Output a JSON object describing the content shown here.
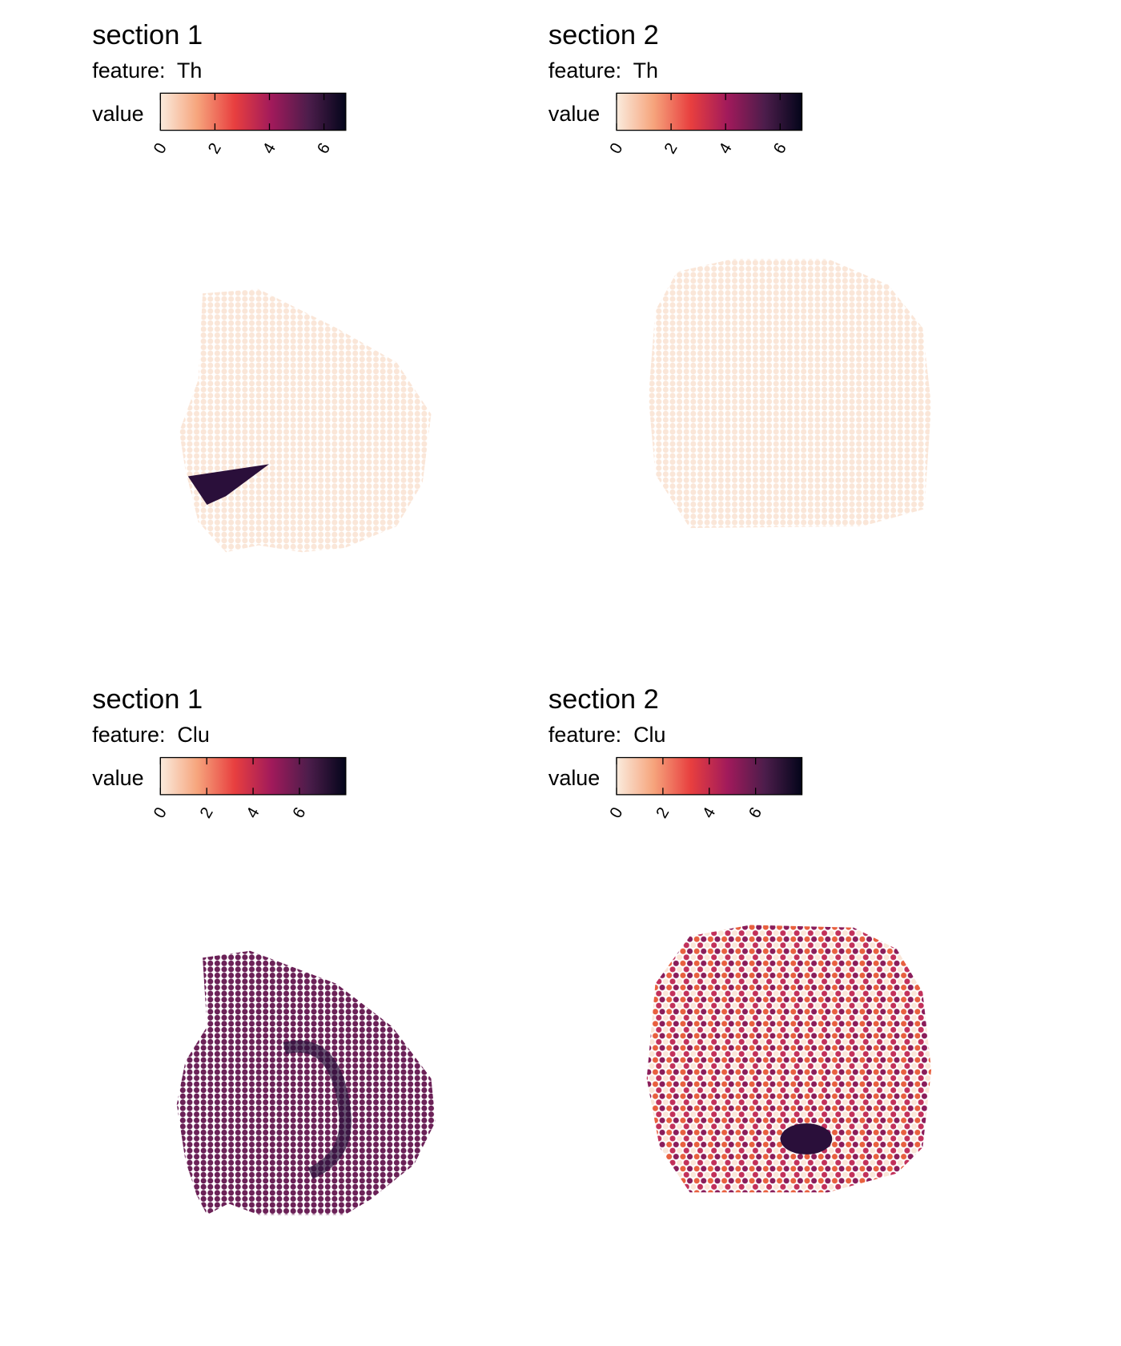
{
  "panels": [
    {
      "title": "section 1",
      "feature_label": "feature:  Th",
      "legend_title": "value",
      "colorbar": {
        "lim": [
          0,
          6.8
        ],
        "ticks": [
          0,
          2,
          4,
          6
        ],
        "colors": [
          "#faebdd",
          "#f6a47c",
          "#e83f3f",
          "#a11a5b",
          "#4c1d4b",
          "#03051a"
        ]
      }
    },
    {
      "title": "section 2",
      "feature_label": "feature:  Th",
      "legend_title": "value",
      "colorbar": {
        "lim": [
          0,
          6.8
        ],
        "ticks": [
          0,
          2,
          4,
          6
        ],
        "colors": [
          "#faebdd",
          "#f6a47c",
          "#e83f3f",
          "#a11a5b",
          "#4c1d4b",
          "#03051a"
        ]
      }
    },
    {
      "title": "section 1",
      "feature_label": "feature:  Clu",
      "legend_title": "value",
      "colorbar": {
        "lim": [
          0,
          8
        ],
        "ticks": [
          0,
          2,
          4,
          6
        ],
        "colors": [
          "#faebdd",
          "#f6a47c",
          "#e83f3f",
          "#a11a5b",
          "#4c1d4b",
          "#03051a"
        ]
      }
    },
    {
      "title": "section 2",
      "feature_label": "feature:  Clu",
      "legend_title": "value",
      "colorbar": {
        "lim": [
          0,
          8
        ],
        "ticks": [
          0,
          2,
          4,
          6
        ],
        "colors": [
          "#faebdd",
          "#f6a47c",
          "#e83f3f",
          "#a11a5b",
          "#4c1d4b",
          "#03051a"
        ]
      }
    }
  ]
}
